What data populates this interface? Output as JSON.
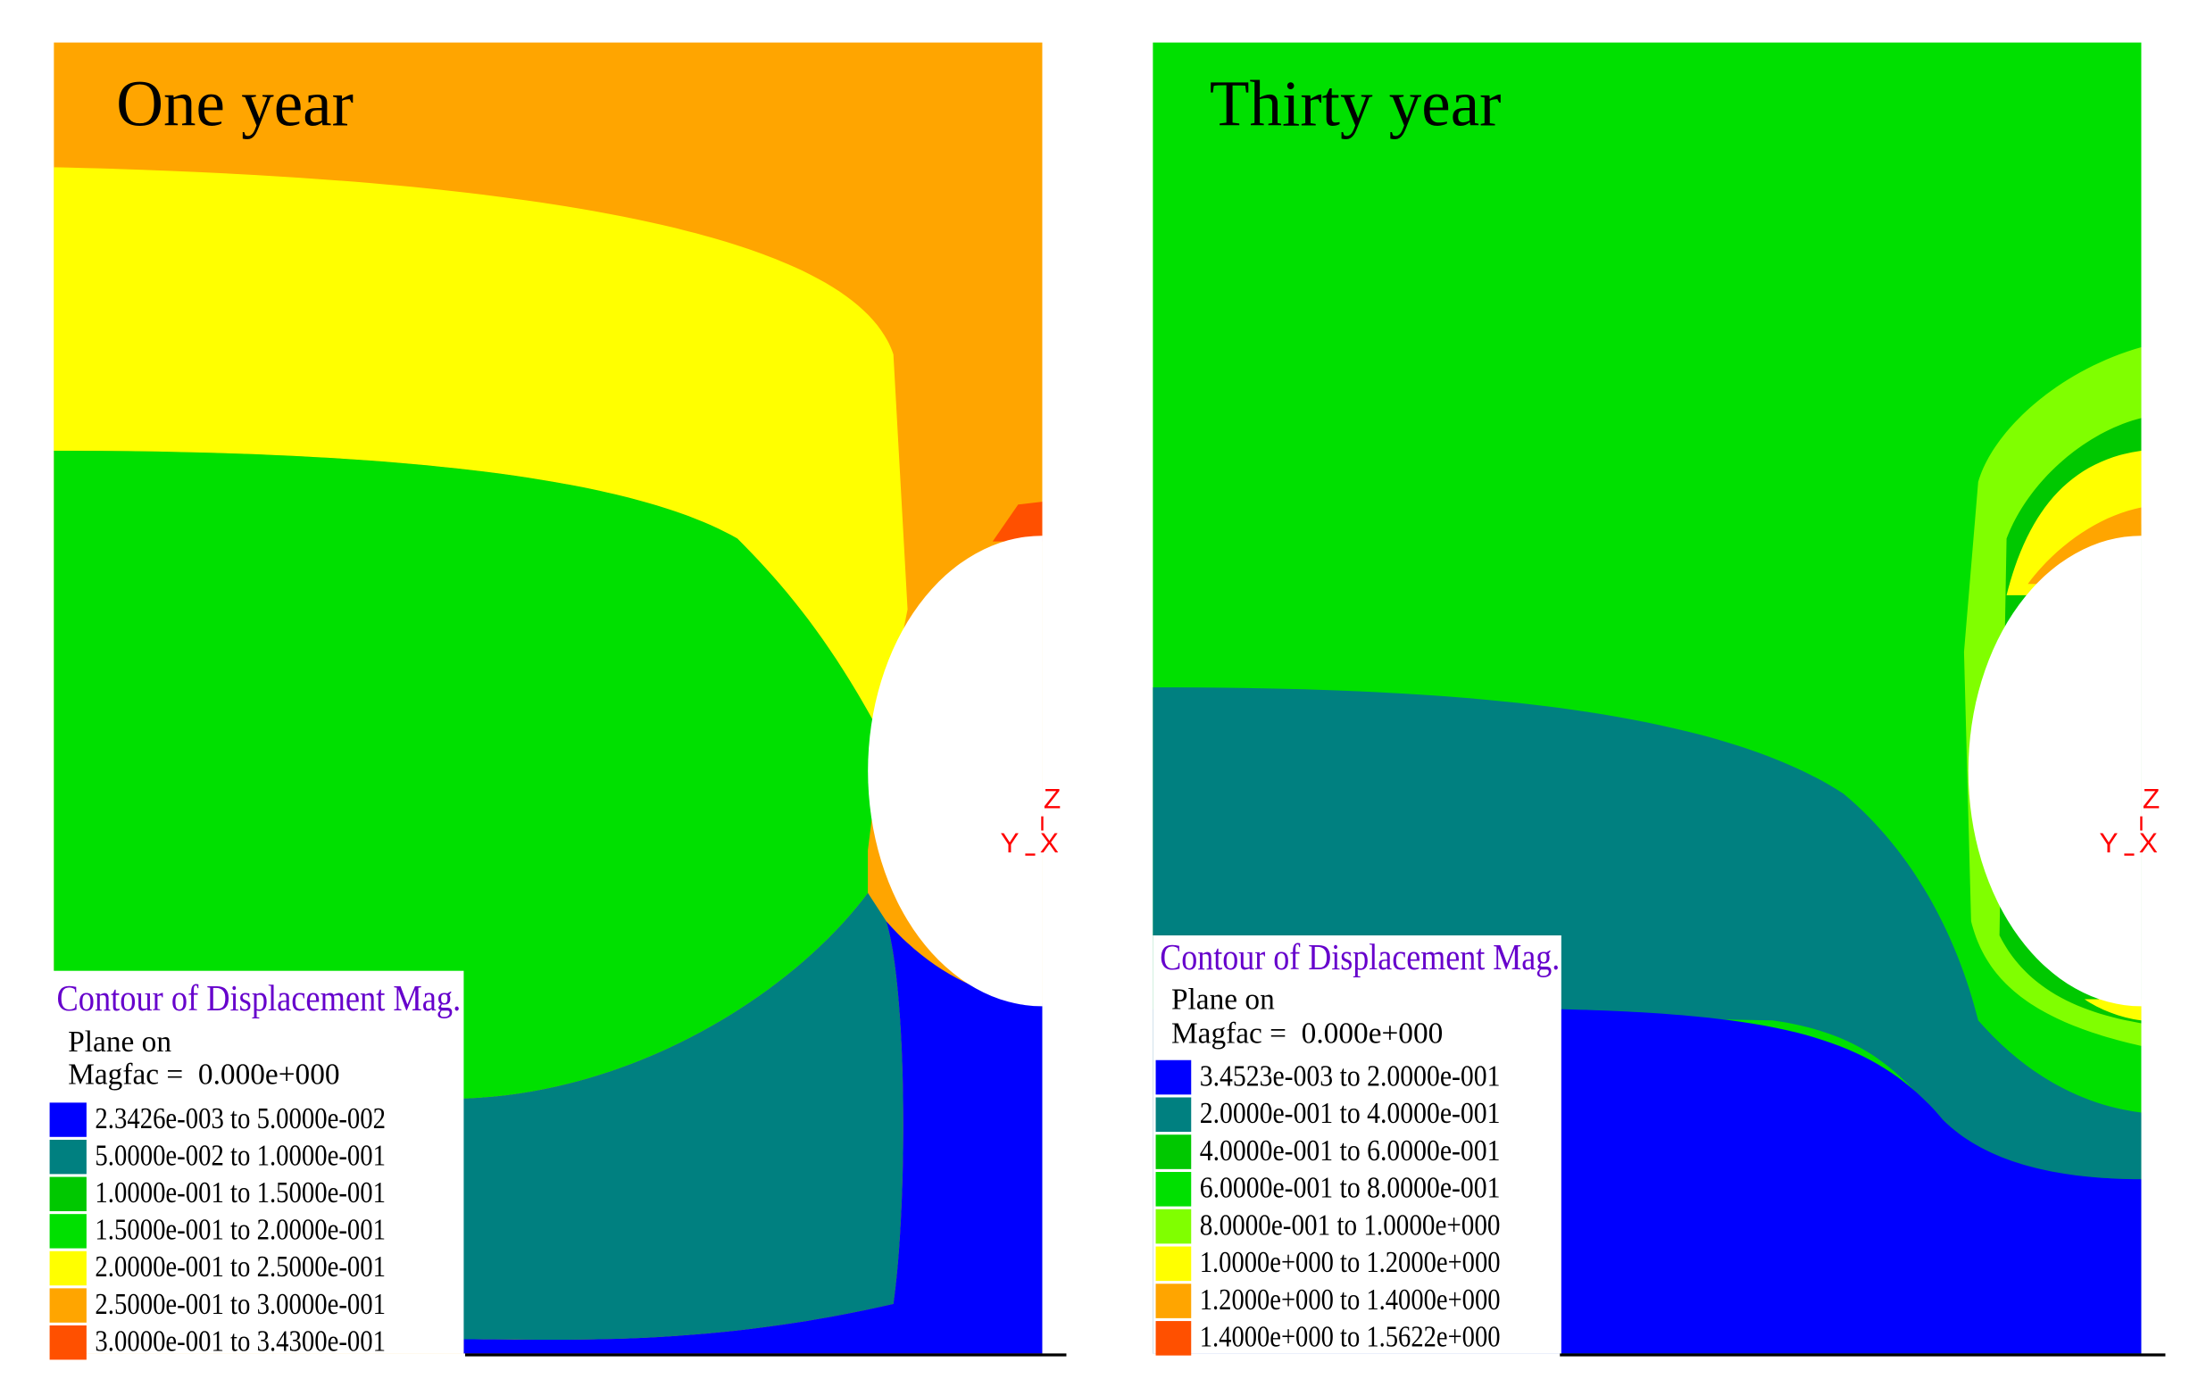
{
  "panels": [
    {
      "title": "One year",
      "axes": {
        "z": "Z",
        "y": "Y",
        "x": "X"
      },
      "legend": {
        "title": "Contour of Displacement Mag.",
        "plane": "Plane on",
        "magfac": "Magfac =  0.000e+000",
        "entries": [
          {
            "label": "2.3426e-003 to 5.0000e-002",
            "color": "#0000ff"
          },
          {
            "label": "5.0000e-002 to 1.0000e-001",
            "color": "#008080"
          },
          {
            "label": "1.0000e-001 to 1.5000e-001",
            "color": "#00c800"
          },
          {
            "label": "1.5000e-001 to 2.0000e-001",
            "color": "#00e000"
          },
          {
            "label": "2.0000e-001 to 2.5000e-001",
            "color": "#ffff00"
          },
          {
            "label": "2.5000e-001 to 3.0000e-001",
            "color": "#ffa500"
          },
          {
            "label": "3.0000e-001 to 3.4300e-001",
            "color": "#ff5000"
          }
        ]
      }
    },
    {
      "title": "Thirty year",
      "axes": {
        "z": "Z",
        "y": "Y",
        "x": "X"
      },
      "legend": {
        "title": "Contour of Displacement Mag.",
        "plane": "Plane on",
        "magfac": "Magfac =  0.000e+000",
        "entries": [
          {
            "label": "3.4523e-003 to 2.0000e-001",
            "color": "#0000ff"
          },
          {
            "label": "2.0000e-001 to 4.0000e-001",
            "color": "#008080"
          },
          {
            "label": "4.0000e-001 to 6.0000e-001",
            "color": "#00c800"
          },
          {
            "label": "6.0000e-001 to 8.0000e-001",
            "color": "#00e000"
          },
          {
            "label": "8.0000e-001 to 1.0000e+000",
            "color": "#80ff00"
          },
          {
            "label": "1.0000e+000 to 1.2000e+000",
            "color": "#ffff00"
          },
          {
            "label": "1.2000e+000 to 1.4000e+000",
            "color": "#ffa500"
          },
          {
            "label": "1.4000e+000 to 1.5622e+000",
            "color": "#ff5000"
          }
        ]
      }
    }
  ]
}
